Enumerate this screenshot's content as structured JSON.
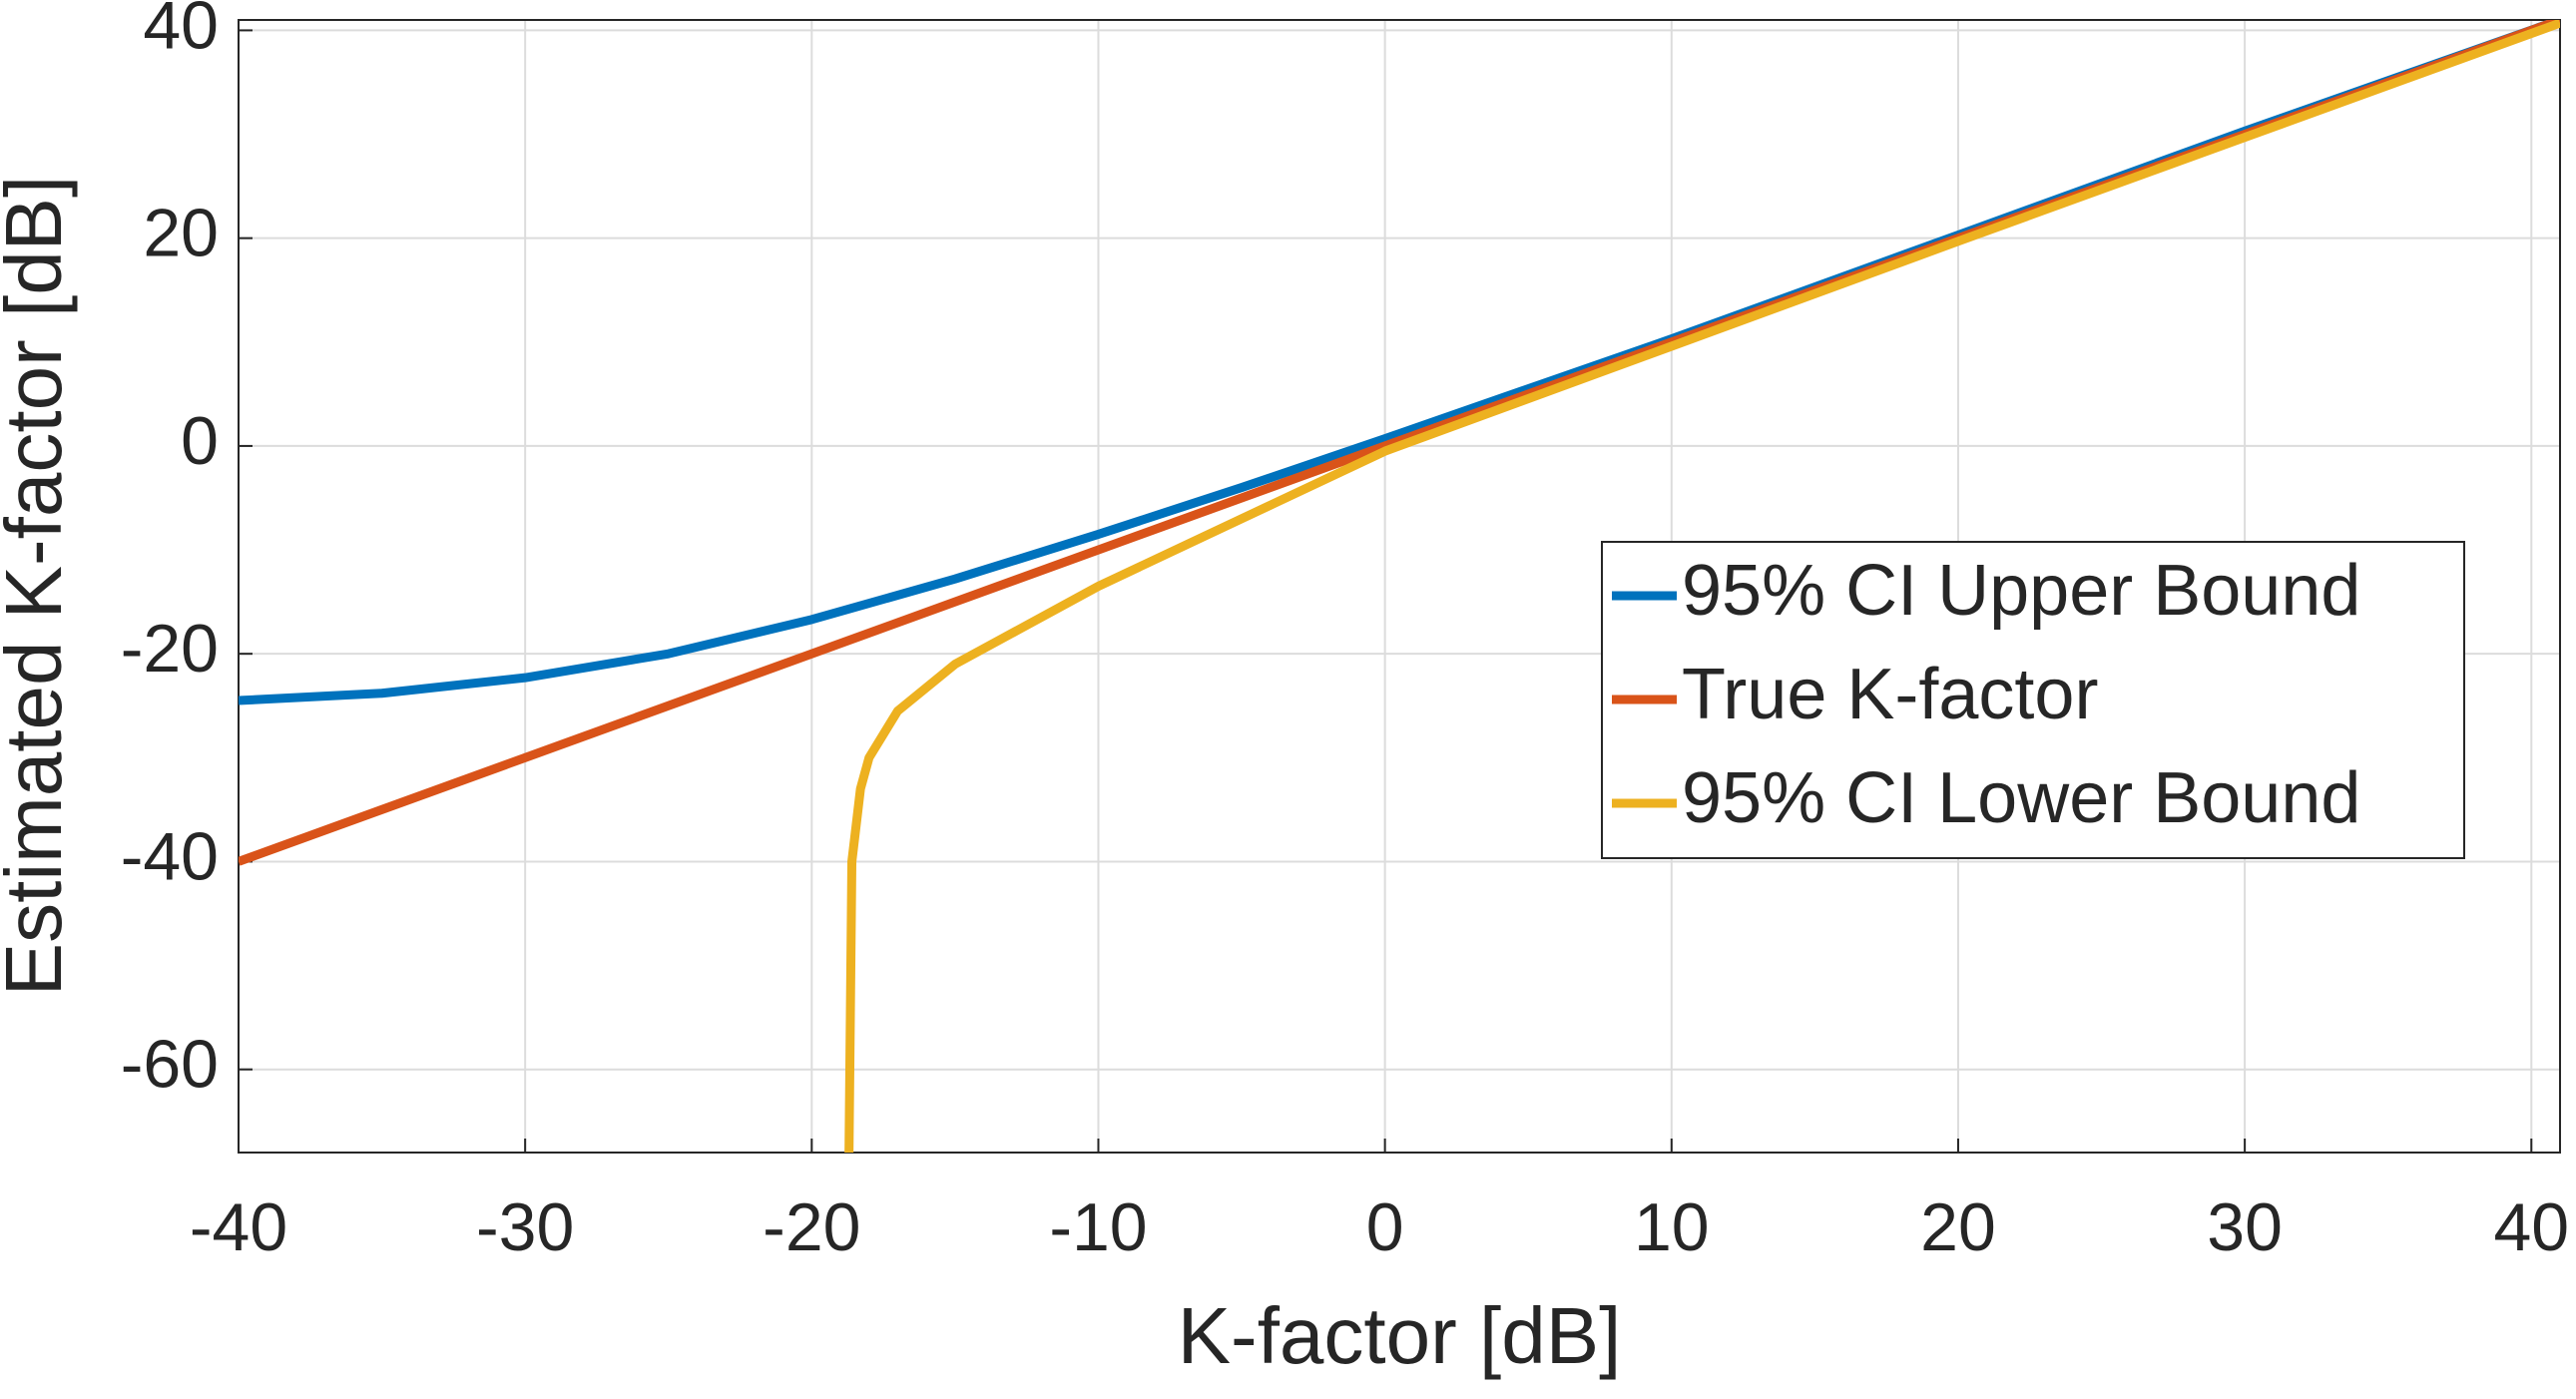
{
  "chart_data": {
    "type": "line",
    "xlabel": "K-factor [dB]",
    "ylabel": "Estimated K-factor [dB]",
    "xlim": [
      -40,
      41
    ],
    "ylim": [
      -68,
      41
    ],
    "xticks": [
      -40,
      -30,
      -20,
      -10,
      0,
      10,
      20,
      30,
      40
    ],
    "yticks": [
      -60,
      -40,
      -20,
      0,
      20,
      40
    ],
    "grid": true,
    "legend_position": "east",
    "series": [
      {
        "name": "95% CI Upper Bound",
        "color": "#0072bd",
        "x": [
          -40,
          -35,
          -30,
          -25,
          -20,
          -15,
          -10,
          -5,
          0,
          10,
          20,
          30,
          41
        ],
        "values": [
          -24.5,
          -23.8,
          -22.3,
          -20,
          -16.7,
          -12.8,
          -8.5,
          -4,
          0.7,
          10.3,
          20.3,
          30.3,
          41
        ]
      },
      {
        "name": "True K-factor",
        "color": "#d95319",
        "x": [
          -40,
          41
        ],
        "values": [
          -40,
          41
        ]
      },
      {
        "name": "95% CI Lower Bound",
        "color": "#edb120",
        "x": [
          -18.7,
          -18.6,
          -18.3,
          -18,
          -17,
          -15,
          -10,
          -5,
          0,
          10,
          20,
          30,
          41
        ],
        "values": [
          -68,
          -40,
          -33,
          -30,
          -25.5,
          -21,
          -13.5,
          -7,
          -0.5,
          9.6,
          19.7,
          29.7,
          40.7
        ]
      }
    ]
  }
}
